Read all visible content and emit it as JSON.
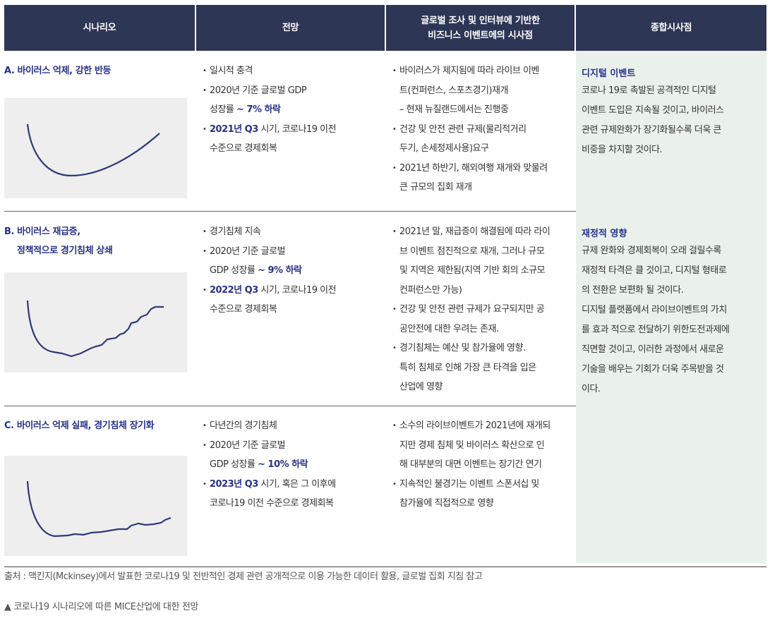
{
  "headers": {
    "scenario": "시나리오",
    "outlook": "전망",
    "implications_line1": "글로벌 조사 및 인터뷰에 기반한",
    "implications_line2": "비즈니스 이벤트에의 시사점",
    "summary": "종합시사점"
  },
  "rows": [
    {
      "title": "A. 바이러스 억제, 강한 반등",
      "outlook": {
        "b1": "일시적 충격",
        "b2_pre": "2020년 기준 글로벌 GDP",
        "b2_cont": "성장률",
        "b2_hl": "~ 7% 하락",
        "b3_hl": "2021년 Q3",
        "b3_rest": " 시기, 코로나19 이전",
        "b3_cont": "수준으로 경제회복"
      },
      "implications": [
        [
          "바이러스가 제지됨에 따라 라이브 이벤",
          "트(컨퍼런스, 스포츠경기)재개",
          "– 현재 뉴질랜드에서는 진행중"
        ],
        [
          "건강 및 안전 관련 규제(물리적거리",
          "두기, 손세정제사용)요구"
        ],
        [
          "2021년 하반기, 해외여행 재개와 맞물려",
          "큰 규모의 집회 재개"
        ]
      ]
    },
    {
      "title_line1": "B. 바이러스 재급증,",
      "title_line2": "정책적으로 경기침체 상쇄",
      "outlook": {
        "b1": "경기침체 지속",
        "b2_pre": "2020년 기준 글로벌",
        "b2_cont": "GDP 성장률",
        "b2_hl": "~ 9% 하락",
        "b3_hl": "2022년 Q3",
        "b3_rest": " 시기, 코로나19 이전",
        "b3_cont": "수준으로 경제회복"
      },
      "implications": [
        [
          "2021년 말, 재급증이 해결됨에 따라 라이",
          "브 이벤트 점진적으로 재개, 그러나 규모",
          "및 지역은 제한됨(지역 기반 회의 소규모",
          "컨퍼런스만 가능)"
        ],
        [
          "건강 및 안전 관련 규제가 요구되지만 공",
          "공안전에 대한 우려는 존재."
        ],
        [
          "경기침체는 예산 및 참가율에 영향.",
          "특히 침체로 인해 가장 큰 타격을 입은",
          "산업에 영향"
        ]
      ]
    },
    {
      "title": "C. 바이러스 억제 실패, 경기침체 장기화",
      "outlook": {
        "b1": "다년간의 경기침체",
        "b2_pre": "2020년 기준 글로벌",
        "b2_cont": "GDP 성장률",
        "b2_hl": "~ 10% 하락",
        "b3_hl": "2023년 Q3",
        "b3_rest": " 시기, 혹은 그 이후에",
        "b3_cont": "코로나19 이전 수준으로 경제회복"
      },
      "implications": [
        [
          "소수의 라이브이벤트가 2021년에 재개되",
          "지만 경제 침체 및 바이러스 확산으로 인",
          "해 대부분의 대면 이벤트는 장기간 연기"
        ],
        [
          "지속적인 불경기는 이벤트 스폰서십 및",
          "참가율에 직접적으로 영향"
        ]
      ]
    }
  ],
  "summary": {
    "s1_title": "디지털 이벤트",
    "s1_lines": [
      "코로나 19로 촉발된 공격적인 디지털",
      "이벤트 도입은 지속될 것이고, 바이러스",
      "관련 규제완화가 장기화될수록 더욱 큰",
      "비중을 차지할 것이다."
    ],
    "s2_title": "재정적 영향",
    "s2_lines": [
      "규제 완화와 경제회복이 오래 걸릴수록",
      "재정적 타격은 클 것이고, 디지털 형태로",
      "의 전환은 보편화 될 것이다.",
      "디지털 플랫폼에서 라이브이벤트의 가치",
      "를 효과 적으로 전달하기 위한도전과제에",
      "직면할 것이고, 이러한 과정에서 새로운",
      "기술을 배우는 기회가 더욱 주목받을 것",
      "이다."
    ]
  },
  "source": "출처 : 맥킨지(Mckinsey)에서 발표한 코로나19 및 전반적인 경제 관련 공개적으로 이용 가능한 데이터 활용, 글로벌 집회 지침 참고",
  "caption": "▲ 코로나19 시나리오에 따른 MICE산업에 대한 전망",
  "colors": {
    "header_bg": "#2e3655",
    "highlight": "#27318a",
    "summary_bg": "#eaf1ea",
    "chart_bg": "#eeeeee"
  }
}
